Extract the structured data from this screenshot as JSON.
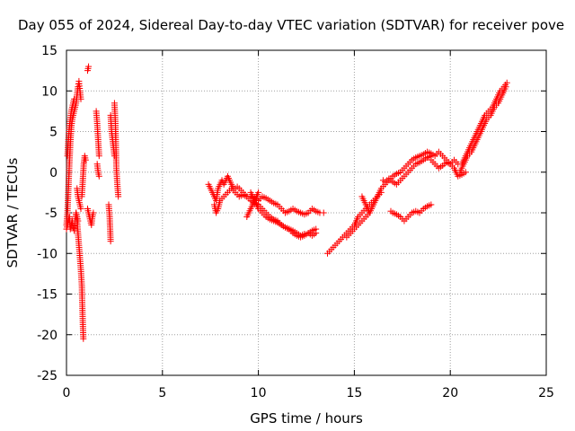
{
  "chart_data": {
    "type": "scatter",
    "title": "Day 055 of 2024, Sidereal Day-to-day VTEC variation (SDTVAR) for receiver pove",
    "xlabel": "GPS time / hours",
    "ylabel": "SDTVAR / TECUs",
    "xlim": [
      0,
      25
    ],
    "ylim": [
      -25,
      15
    ],
    "xticks": [
      0,
      5,
      10,
      15,
      20,
      25
    ],
    "yticks": [
      -25,
      -20,
      -15,
      -10,
      -5,
      0,
      5,
      10,
      15
    ],
    "grid": true,
    "marker": "+",
    "color": "#ff0000",
    "series": [
      {
        "name": "SDTVAR",
        "segments": [
          {
            "x": [
              0.0,
              0.05,
              0.1,
              0.15,
              0.2,
              0.25,
              0.3,
              0.35,
              0.4,
              0.45,
              0.5,
              0.55,
              0.6,
              0.65,
              0.7,
              0.75
            ],
            "y": [
              -6.5,
              -5.0,
              -2.0,
              1.0,
              3.5,
              5.5,
              6.5,
              7.0,
              7.5,
              8.0,
              8.5,
              9.5,
              10.5,
              11.2,
              10.0,
              9.0
            ]
          },
          {
            "x": [
              0.05,
              0.1,
              0.15,
              0.2,
              0.25,
              0.3,
              0.35,
              0.4
            ],
            "y": [
              2.0,
              4.0,
              5.5,
              6.5,
              7.5,
              8.0,
              8.5,
              9.0
            ]
          },
          {
            "x": [
              0.0,
              0.05,
              0.1,
              0.15,
              0.2,
              0.25,
              0.3,
              0.35,
              0.4,
              0.45,
              0.5,
              0.55,
              0.6
            ],
            "y": [
              -7.0,
              -6.5,
              -6.0,
              -5.5,
              -7.0,
              -6.5,
              -6.0,
              -6.8,
              -7.2,
              -6.0,
              -5.0,
              -5.5,
              -6.0
            ]
          },
          {
            "x": [
              0.5,
              0.55,
              0.6,
              0.65,
              0.7,
              0.75,
              0.8,
              0.82,
              0.85,
              0.88
            ],
            "y": [
              -5.0,
              -6.0,
              -7.5,
              -9.0,
              -10.5,
              -12.0,
              -14.0,
              -16.0,
              -18.5,
              -20.5
            ]
          },
          {
            "x": [
              0.55,
              0.6,
              0.65,
              0.7,
              0.75
            ],
            "y": [
              -2.0,
              -3.0,
              -3.5,
              -4.0,
              -4.5
            ]
          },
          {
            "x": [
              0.8,
              0.85,
              0.9,
              0.95,
              1.0
            ],
            "y": [
              -3.0,
              -1.0,
              1.0,
              2.0,
              1.5
            ]
          },
          {
            "x": [
              1.1,
              1.15
            ],
            "y": [
              12.5,
              13.0
            ]
          },
          {
            "x": [
              1.1,
              1.15,
              1.2,
              1.25,
              1.3,
              1.35,
              1.4
            ],
            "y": [
              -4.5,
              -5.0,
              -5.5,
              -6.0,
              -6.5,
              -5.5,
              -5.0
            ]
          },
          {
            "x": [
              1.55,
              1.6,
              1.65,
              1.7
            ],
            "y": [
              7.5,
              6.0,
              4.0,
              2.0
            ]
          },
          {
            "x": [
              1.6,
              1.65,
              1.7
            ],
            "y": [
              1.0,
              0.0,
              -0.5
            ]
          },
          {
            "x": [
              2.2,
              2.25,
              2.3
            ],
            "y": [
              -4.0,
              -5.5,
              -8.5
            ]
          },
          {
            "x": [
              2.3,
              2.35,
              2.4,
              2.45,
              2.5
            ],
            "y": [
              7.0,
              5.0,
              4.0,
              3.0,
              2.0
            ]
          },
          {
            "x": [
              2.5,
              2.55,
              2.6,
              2.65,
              2.7
            ],
            "y": [
              8.5,
              6.0,
              0.5,
              -1.5,
              -3.0
            ]
          },
          {
            "x": [
              7.4,
              7.5,
              7.6,
              7.7,
              7.8,
              7.9,
              8.0,
              8.1,
              8.2,
              8.3,
              8.4,
              8.5,
              8.6,
              8.7,
              8.8,
              8.9,
              9.0,
              9.2,
              9.4,
              9.6,
              9.8,
              10.0,
              10.2,
              10.4,
              10.6,
              10.8,
              11.0,
              11.2,
              11.4,
              11.6,
              11.8,
              12.0,
              12.2,
              12.4,
              12.6,
              12.8,
              13.0,
              13.2,
              13.4
            ],
            "y": [
              -1.5,
              -2.0,
              -2.5,
              -3.0,
              -3.5,
              -2.0,
              -1.5,
              -1.0,
              -1.5,
              -1.0,
              -0.5,
              -1.0,
              -1.5,
              -2.0,
              -2.0,
              -1.8,
              -2.0,
              -2.5,
              -3.0,
              -3.0,
              -3.2,
              -3.5,
              -3.0,
              -3.2,
              -3.5,
              -3.8,
              -4.0,
              -4.5,
              -5.0,
              -4.8,
              -4.5,
              -4.8,
              -5.0,
              -5.2,
              -5.0,
              -4.5,
              -4.8,
              -5.0,
              -5.0
            ]
          },
          {
            "x": [
              7.7,
              7.8,
              7.9,
              8.0,
              8.2,
              8.4,
              8.6,
              8.8,
              9.0,
              9.2,
              9.4,
              9.6,
              9.8,
              10.0,
              10.2,
              10.4,
              10.6,
              10.8,
              11.0,
              11.2,
              11.4,
              11.6,
              11.8,
              12.0,
              12.2,
              12.4,
              12.6,
              12.8,
              13.0
            ],
            "y": [
              -4.0,
              -5.0,
              -4.5,
              -3.5,
              -3.0,
              -2.5,
              -2.0,
              -2.5,
              -3.0,
              -2.8,
              -3.0,
              -3.5,
              -3.8,
              -4.0,
              -4.5,
              -5.0,
              -5.5,
              -5.8,
              -6.0,
              -6.5,
              -6.8,
              -7.0,
              -7.2,
              -7.5,
              -7.8,
              -7.6,
              -7.5,
              -7.2,
              -7.0
            ]
          },
          {
            "x": [
              9.6,
              9.7,
              9.8,
              9.9,
              10.0,
              10.2,
              10.4,
              10.6,
              10.8,
              11.0,
              11.2,
              11.4,
              11.6,
              11.8,
              12.0,
              12.2,
              12.4,
              12.6,
              12.8,
              13.0
            ],
            "y": [
              -2.5,
              -3.0,
              -3.5,
              -4.0,
              -4.5,
              -5.0,
              -5.5,
              -5.8,
              -6.0,
              -6.2,
              -6.5,
              -6.8,
              -7.0,
              -7.5,
              -7.8,
              -8.0,
              -7.8,
              -7.5,
              -7.8,
              -7.5
            ]
          },
          {
            "x": [
              9.4,
              9.5,
              9.6,
              9.7,
              9.8,
              9.9,
              10.0
            ],
            "y": [
              -5.5,
              -5.0,
              -4.5,
              -4.0,
              -3.5,
              -3.0,
              -2.5
            ]
          },
          {
            "x": [
              13.6,
              13.8,
              14.0,
              14.2,
              14.4,
              14.6,
              14.8,
              15.0,
              15.2,
              15.4,
              15.6,
              15.8,
              16.0,
              16.2,
              16.4,
              16.6,
              16.8,
              17.0,
              17.2,
              17.4,
              17.6,
              17.8,
              18.0,
              18.2,
              18.4,
              18.6,
              18.8,
              19.0,
              19.2,
              19.4,
              19.6,
              19.8,
              20.0,
              20.2,
              20.4,
              20.6,
              20.8,
              21.0,
              21.2,
              21.4,
              21.6,
              21.8,
              22.0,
              22.2,
              22.4,
              22.6,
              22.8,
              22.95
            ],
            "y": [
              -10.0,
              -9.5,
              -9.0,
              -8.5,
              -8.0,
              -7.5,
              -7.0,
              -6.5,
              -5.5,
              -5.0,
              -4.5,
              -4.0,
              -3.5,
              -3.0,
              -2.0,
              -1.5,
              -1.0,
              -0.5,
              -0.2,
              0.0,
              0.5,
              1.0,
              1.5,
              1.8,
              2.0,
              2.2,
              2.5,
              2.3,
              2.0,
              2.5,
              2.0,
              1.5,
              1.0,
              1.5,
              1.0,
              1.0,
              2.0,
              3.0,
              4.0,
              5.0,
              6.0,
              7.0,
              7.5,
              8.0,
              9.0,
              10.0,
              10.5,
              11.0
            ]
          },
          {
            "x": [
              14.6,
              14.8,
              15.0,
              15.2,
              15.4,
              15.6,
              15.8,
              16.0,
              16.2,
              16.4
            ],
            "y": [
              -8.0,
              -7.5,
              -7.0,
              -6.5,
              -6.0,
              -5.5,
              -5.0,
              -4.0,
              -3.0,
              -2.5
            ]
          },
          {
            "x": [
              15.4,
              15.5,
              15.6,
              15.7,
              15.8
            ],
            "y": [
              -3.0,
              -3.5,
              -4.0,
              -4.5,
              -5.0
            ]
          },
          {
            "x": [
              16.5,
              16.6,
              16.7,
              16.8,
              16.9,
              17.0,
              17.2,
              17.4,
              17.6,
              17.8,
              18.0,
              18.2,
              18.4,
              18.6,
              18.8,
              19.0
            ],
            "y": [
              -1.0,
              -1.2,
              -1.0,
              -0.8,
              -1.0,
              -1.2,
              -1.5,
              -1.0,
              -0.5,
              0.0,
              0.5,
              1.0,
              1.2,
              1.5,
              1.8,
              2.0
            ]
          },
          {
            "x": [
              16.9,
              17.0,
              17.2,
              17.4,
              17.6,
              17.8,
              18.0,
              18.2,
              18.4,
              18.6,
              18.8,
              19.0
            ],
            "y": [
              -4.8,
              -5.0,
              -5.2,
              -5.5,
              -6.0,
              -5.5,
              -5.0,
              -4.8,
              -5.0,
              -4.5,
              -4.2,
              -4.0
            ]
          },
          {
            "x": [
              19.0,
              19.2,
              19.4,
              19.6,
              19.8,
              20.0,
              20.2,
              20.4,
              20.6,
              20.8
            ],
            "y": [
              1.5,
              1.0,
              0.5,
              0.8,
              1.2,
              1.0,
              0.5,
              -0.5,
              -0.3,
              0.0
            ]
          },
          {
            "x": [
              20.5,
              20.7,
              20.9,
              21.1,
              21.3,
              21.5,
              21.7,
              21.9,
              22.1,
              22.3,
              22.5,
              22.7,
              22.9
            ],
            "y": [
              0.0,
              1.0,
              2.0,
              2.5,
              3.5,
              4.5,
              5.5,
              6.5,
              7.0,
              8.0,
              8.5,
              9.5,
              10.5
            ]
          }
        ]
      }
    ]
  }
}
